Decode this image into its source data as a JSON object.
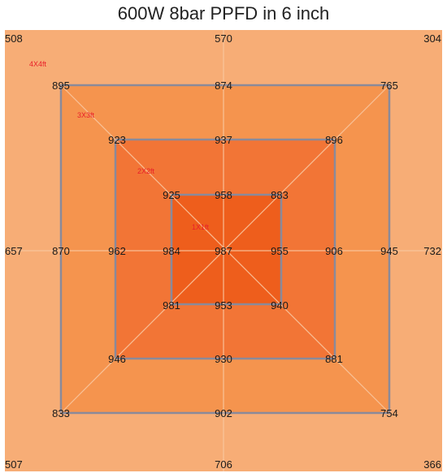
{
  "title": "600W 8bar PPFD in 6 inch",
  "colors": {
    "zone_4x4": "#f7ad76",
    "zone_3x3": "#f5944e",
    "zone_2x2": "#f27536",
    "zone_1x1": "#ee5e1c",
    "square_stroke": "#8a8a9a",
    "guide_line": "#f9c7a0",
    "value_text": "#1a1a1a",
    "zone_label": "#e8202a"
  },
  "zones": [
    {
      "label": "4X4ft",
      "corners": {
        "tl": "508",
        "t": "570",
        "tr": "304",
        "l": "657",
        "r": "732",
        "bl": "507",
        "b": "706",
        "br": "366"
      }
    },
    {
      "label": "3X3ft",
      "corners": {
        "tl": "895",
        "t": "874",
        "tr": "765",
        "l": "870",
        "r": "945",
        "bl": "833",
        "b": "902",
        "br": "754"
      }
    },
    {
      "label": "2X2ft",
      "corners": {
        "tl": "923",
        "t": "937",
        "tr": "896",
        "l": "962",
        "r": "906",
        "bl": "946",
        "b": "930",
        "br": "881"
      }
    },
    {
      "label": "1X1ft",
      "corners": {
        "tl": "925",
        "t": "958",
        "tr": "883",
        "l": "984",
        "r": "955",
        "bl": "981",
        "b": "953",
        "br": "940"
      }
    }
  ],
  "center": "987"
}
